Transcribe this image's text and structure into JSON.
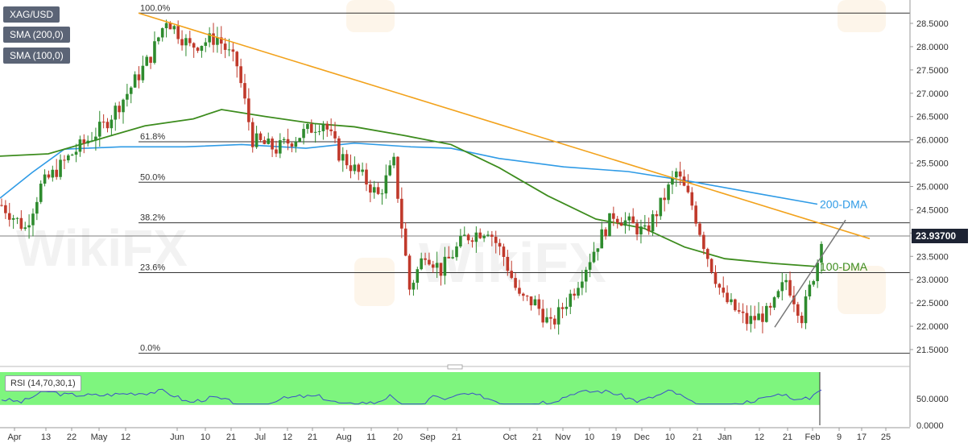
{
  "legend": {
    "symbol": "XAG/USD",
    "sma200": "SMA (200,0)",
    "sma100": "SMA (100,0)",
    "rsi": "RSI (14,70,30,1)"
  },
  "colors": {
    "candle_up": "#2e8b2e",
    "candle_down": "#c0392b",
    "sma200": "#2f9be6",
    "sma100": "#3d8c1e",
    "resistance": "#f2a21c",
    "support": "#777777",
    "rsi_overbought": "#7ef57e",
    "rsi_oversold": "#ff8484",
    "rsi_line": "#3b4fc9",
    "price_badge": "#1d2333"
  },
  "chart_data": {
    "type": "candlestick",
    "symbol": "XAG/USD",
    "last_price": "23.93700",
    "y_axis": {
      "range": [
        21.2,
        28.8
      ],
      "ticks": [
        "28.5000",
        "28.0000",
        "27.5000",
        "27.0000",
        "26.5000",
        "26.0000",
        "25.5000",
        "25.0000",
        "24.5000",
        "24.0000",
        "23.5000",
        "23.0000",
        "22.5000",
        "22.0000",
        "21.5000"
      ]
    },
    "x_axis": {
      "ticks": [
        "Apr",
        "13",
        "22",
        "May",
        "12",
        "Jun",
        "10",
        "21",
        "Jul",
        "12",
        "21",
        "Aug",
        "11",
        "20",
        "Sep",
        "21",
        "Oct",
        "21",
        "Nov",
        "10",
        "19",
        "Dec",
        "10",
        "21",
        "Jan",
        "12",
        "21",
        "Feb",
        "9",
        "17",
        "25"
      ]
    },
    "fibonacci": [
      {
        "label": "100.0%",
        "value": 28.72
      },
      {
        "label": "61.8%",
        "value": 25.96
      },
      {
        "label": "50.0%",
        "value": 25.09
      },
      {
        "label": "38.2%",
        "value": 24.22
      },
      {
        "label": "23.6%",
        "value": 23.15
      },
      {
        "label": "0.0%",
        "value": 21.42
      }
    ],
    "annotations": [
      {
        "label": "200-DMA",
        "value": 24.62
      },
      {
        "label": "100-DMA",
        "value": 23.28
      }
    ],
    "rsi": {
      "ticks": [
        "50.0000",
        "0.0000"
      ],
      "overbought": 70,
      "oversold": 30
    }
  }
}
